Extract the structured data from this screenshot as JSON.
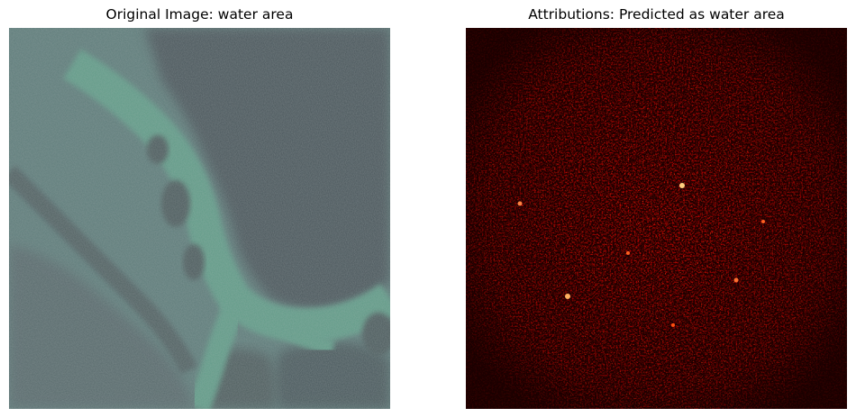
{
  "panels": [
    {
      "title": "Original Image: water area",
      "image": "satellite-water-area-photo",
      "colors": {
        "land": "#4b5a5c",
        "water": "#5f9a86",
        "shallow": "#6a8a80"
      }
    },
    {
      "title": "Attributions: Predicted as water area",
      "image": "attribution-heatmap",
      "colormap": "hot",
      "colors": {
        "background": "#000000",
        "low": "#3a0000",
        "mid": "#c00000",
        "high": "#ff2200",
        "peak": "#ffcc66"
      }
    }
  ]
}
